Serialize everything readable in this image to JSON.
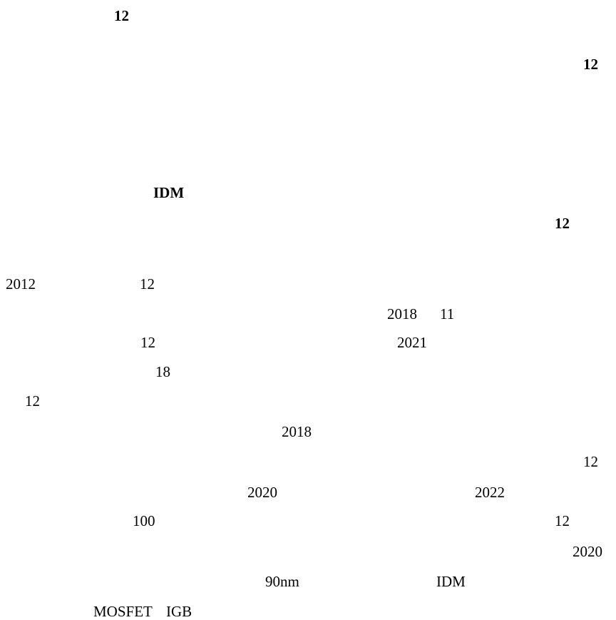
{
  "headings": [
    "12",
    "12",
    "IDM",
    "12"
  ],
  "body": [
    "2012",
    "12",
    "2018",
    "11",
    "12",
    "2021",
    "18",
    "12",
    "2018",
    "12",
    "2020",
    "2022",
    "100",
    "12",
    "2020",
    "90nm",
    "IDM",
    "MOSFET",
    "IGB"
  ]
}
